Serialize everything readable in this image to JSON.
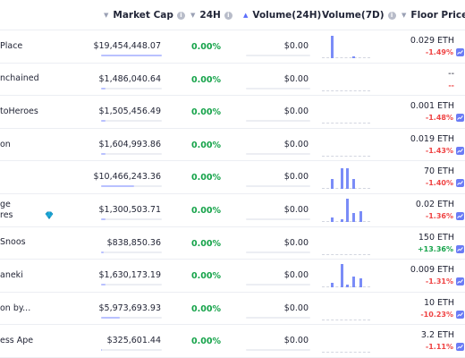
{
  "header": {
    "market_cap": "Market Cap",
    "h24": "24H",
    "volume_24h": "Volume(24H)",
    "volume_7d": "Volume(7D)",
    "floor_price": "Floor Price",
    "sort_down": "▼",
    "sort_up": "▲",
    "info": "i"
  },
  "rows": [
    {
      "name": "Place",
      "market_cap": "$19,454,448.07",
      "mcap_level": 1.0,
      "pct_24h": "0.00%",
      "volume": "$0.00",
      "spark": [
        0.95,
        0,
        0,
        0.08,
        0
      ],
      "floor": "0.029 ETH",
      "change": "-1.49%",
      "change_positive": false,
      "gem": false
    },
    {
      "name": "nchained",
      "market_cap": "$1,486,040.64",
      "mcap_level": 0.08,
      "pct_24h": "0.00%",
      "volume": "$0.00",
      "spark": [
        0,
        0,
        0,
        0,
        0
      ],
      "floor": "--",
      "change": "--",
      "change_positive": false,
      "gem": false
    },
    {
      "name": "toHeroes",
      "market_cap": "$1,505,456.49",
      "mcap_level": 0.08,
      "pct_24h": "0.00%",
      "volume": "$0.00",
      "spark": [
        0,
        0,
        0,
        0,
        0
      ],
      "floor": "0.001 ETH",
      "change": "-1.48%",
      "change_positive": false,
      "gem": false
    },
    {
      "name": "on",
      "market_cap": "$1,604,993.86",
      "mcap_level": 0.08,
      "pct_24h": "0.00%",
      "volume": "$0.00",
      "spark": [
        0,
        0,
        0,
        0,
        0
      ],
      "floor": "0.019 ETH",
      "change": "-1.43%",
      "change_positive": false,
      "gem": false
    },
    {
      "name": "",
      "market_cap": "$10,466,243.36",
      "mcap_level": 0.54,
      "pct_24h": "0.00%",
      "volume": "$0.00",
      "spark": [
        0.45,
        0.9,
        0.9,
        0.45,
        0
      ],
      "floor": "70 ETH",
      "change": "-1.40%",
      "change_positive": false,
      "gem": false
    },
    {
      "name": "ge\nres",
      "market_cap": "$1,300,503.71",
      "mcap_level": 0.07,
      "pct_24h": "0.00%",
      "volume": "$0.00",
      "spark": [
        0.2,
        0.12,
        1.0,
        0.4,
        0.45
      ],
      "floor": "0.02 ETH",
      "change": "-1.36%",
      "change_positive": false,
      "gem": true
    },
    {
      "name": "Snoos",
      "market_cap": "$838,850.36",
      "mcap_level": 0.05,
      "pct_24h": "0.00%",
      "volume": "$0.00",
      "spark": [
        0,
        0,
        0,
        0,
        0
      ],
      "floor": "150 ETH",
      "change": "+13.36%",
      "change_positive": true,
      "gem": false
    },
    {
      "name": "aneki",
      "market_cap": "$1,630,173.19",
      "mcap_level": 0.08,
      "pct_24h": "0.00%",
      "volume": "$0.00",
      "spark": [
        0.2,
        1.0,
        0.12,
        0.45,
        0.4
      ],
      "floor": "0.009 ETH",
      "change": "-1.31%",
      "change_positive": false,
      "gem": false
    },
    {
      "name": "on by...",
      "market_cap": "$5,973,693.93",
      "mcap_level": 0.31,
      "pct_24h": "0.00%",
      "volume": "$0.00",
      "spark": [
        0,
        0,
        0,
        0,
        0
      ],
      "floor": "10 ETH",
      "change": "-10.23%",
      "change_positive": false,
      "gem": false
    },
    {
      "name": "ess Ape",
      "market_cap": "$325,601.44",
      "mcap_level": 0.02,
      "pct_24h": "0.00%",
      "volume": "$0.00",
      "spark": [
        0,
        0,
        0,
        0,
        0
      ],
      "floor": "3.2 ETH",
      "change": "-1.11%",
      "change_positive": false,
      "gem": false
    }
  ],
  "colors": {
    "accent": "#5b6dfb",
    "positive": "#16a34a",
    "negative": "#ef4444",
    "spark": "#7a8cf7"
  },
  "icons": {
    "sort": "sort-caret-icon",
    "info": "info-icon",
    "gem": "diamond-icon",
    "chart": "chart-icon"
  }
}
